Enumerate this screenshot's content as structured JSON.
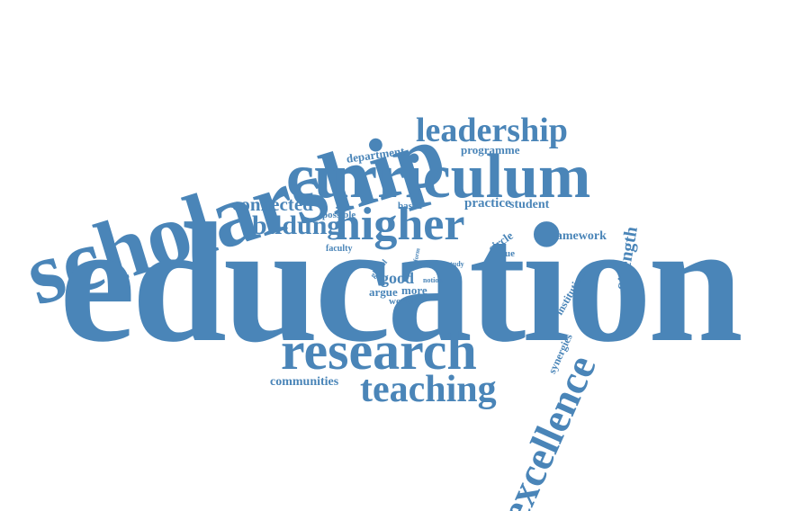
{
  "color": "#4a85b8",
  "words": {
    "education": "education",
    "scholarship": "scholarship",
    "curriculum": "curriculum",
    "research": "research",
    "higher": "higher",
    "teaching": "teaching",
    "leadership": "leadership",
    "excellence": "excellence",
    "bildung": "bildung",
    "connected": "connected",
    "strength": "strength",
    "communities": "communities",
    "department": "department",
    "programme": "programme",
    "practice": "practice",
    "student": "student",
    "framework": "framework",
    "based": "based",
    "possible": "possible",
    "circle": "circle",
    "value": "value",
    "faculty": "faculty",
    "good": "good",
    "argue": "argue",
    "more": "more",
    "world": "world",
    "notion": "notion",
    "study": "study",
    "global": "global",
    "form": "form",
    "good_small": "good",
    "institution": "institution",
    "synergies": "synergies"
  }
}
